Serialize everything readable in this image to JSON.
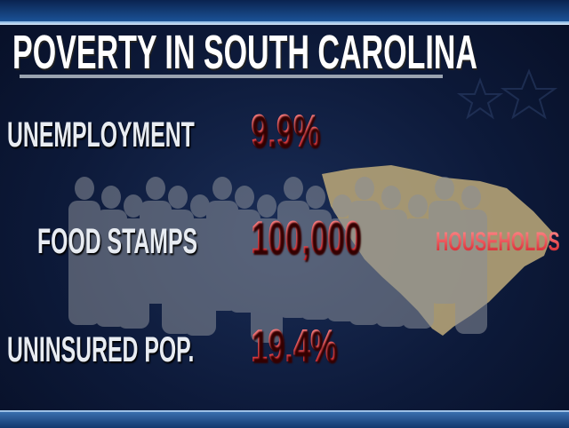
{
  "title": "POVERTY IN SOUTH CAROLINA",
  "stats": [
    {
      "label": "UNEMPLOYMENT",
      "value": "9.9%"
    },
    {
      "label": "FOOD STAMPS",
      "value": "100,000",
      "unit": "HOUSEHOLDS"
    },
    {
      "label": "UNINSURED POP.",
      "value": "19.4%"
    }
  ],
  "colors": {
    "value": "#e23a3e",
    "map": "#b8a67a",
    "background": "#0d1a3a"
  }
}
